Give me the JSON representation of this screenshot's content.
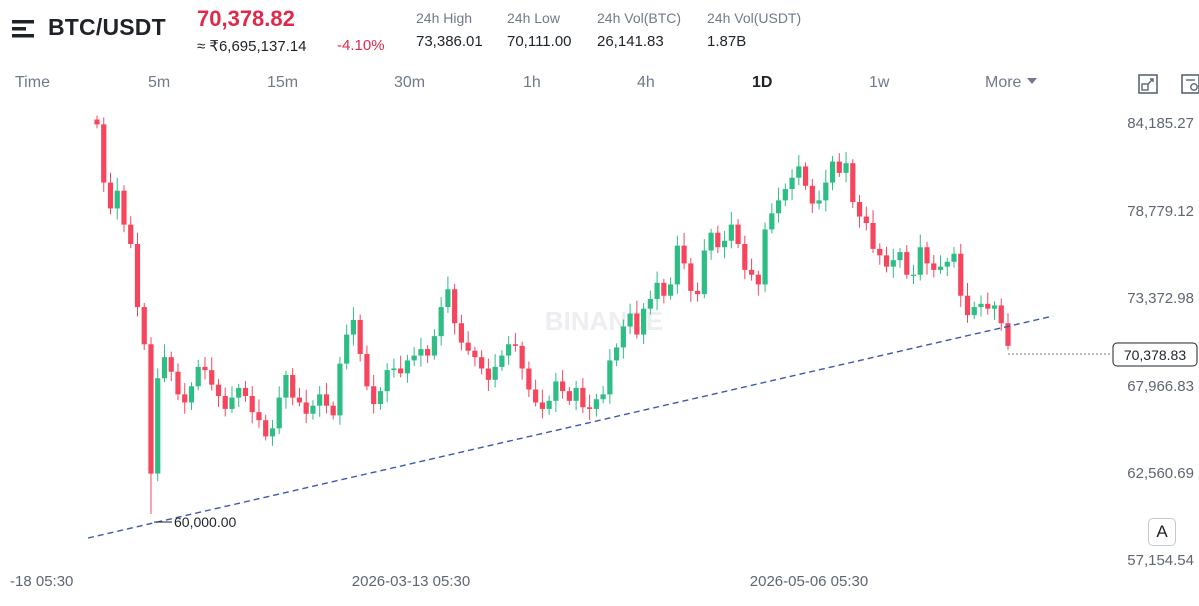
{
  "header": {
    "pair": "BTC/USDT",
    "last_price": "70,378.82",
    "fiat_price": "≈ ₹6,695,137.14",
    "change_pct": "-4.10%",
    "stats": [
      {
        "label": "24h High",
        "value": "73,386.01"
      },
      {
        "label": "24h Low",
        "value": "70,111.00"
      },
      {
        "label": "24h Vol(BTC)",
        "value": "26,141.83"
      },
      {
        "label": "24h Vol(USDT)",
        "value": "1.87B"
      }
    ]
  },
  "toolbar": {
    "time_label": "Time",
    "timeframes": [
      "5m",
      "15m",
      "30m",
      "1h",
      "4h",
      "1D",
      "1w"
    ],
    "active_timeframe": "1D",
    "more_label": "More",
    "icons": [
      "expand-icon",
      "settings-icon"
    ]
  },
  "chart": {
    "watermark": "BINANCE",
    "y_ticks": [
      "84,185.27",
      "78,779.12",
      "73,372.98",
      "67,966.83",
      "62,560.69",
      "57,154.54"
    ],
    "x_ticks": [
      "-18 05:30",
      "2026-03-13 05:30",
      "2026-05-06 05:30"
    ],
    "current_price_label": "70,378.83",
    "low_marker_label": "60,000.00",
    "auto_button": "A",
    "colors": {
      "up": "#2ebd85",
      "down": "#f6465d",
      "trendline": "#3b5aa8"
    }
  },
  "chart_data": {
    "type": "candlestick",
    "ylim": [
      57154.54,
      84185.27
    ],
    "y_ticks": [
      84185.27,
      78779.12,
      73372.98,
      67966.83,
      62560.69,
      57154.54
    ],
    "current_price": 70378.83,
    "marked_low": 60000.0,
    "closes": [
      84100,
      80500,
      78900,
      80000,
      77900,
      76700,
      72800,
      70500,
      62500,
      68400,
      69700,
      68800,
      67400,
      66900,
      67900,
      69100,
      68900,
      68000,
      67300,
      66500,
      67200,
      67800,
      67300,
      66300,
      65800,
      64800,
      65300,
      67200,
      68600,
      67200,
      66900,
      66200,
      66700,
      67400,
      66700,
      66100,
      69300,
      71100,
      72000,
      69900,
      67900,
      66800,
      67600,
      68900,
      69000,
      68700,
      69500,
      69800,
      70200,
      69800,
      71000,
      72800,
      73900,
      71800,
      70600,
      70100,
      69700,
      69000,
      68300,
      69100,
      69800,
      70500,
      70400,
      69000,
      67700,
      66900,
      66500,
      67000,
      68200,
      67600,
      67000,
      67800,
      66600,
      66500,
      67100,
      67400,
      69500,
      70300,
      71600,
      72400,
      71100,
      72700,
      73300,
      74300,
      73500,
      74200,
      76600,
      75500,
      73800,
      73600,
      76300,
      77400,
      76500,
      76900,
      77900,
      76700,
      75100,
      74800,
      74200,
      77600,
      78600,
      79400,
      80100,
      80800,
      81500,
      80300,
      79200,
      79400,
      80500,
      81800,
      81100,
      81700,
      79300,
      78400,
      78000,
      76400,
      76000,
      75300,
      75700,
      76200,
      74800,
      74800,
      76500,
      75500,
      75100,
      75300,
      75600,
      76100,
      73500,
      72300,
      72800,
      73000,
      72700,
      72900,
      71800,
      70400
    ]
  }
}
